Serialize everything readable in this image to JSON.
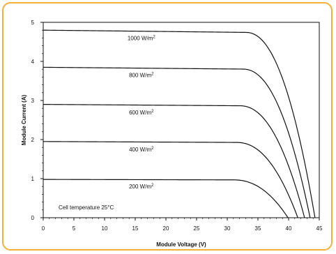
{
  "chart_data": {
    "type": "line",
    "title": "",
    "xlabel": "Module Voltage (V)",
    "ylabel": "Module Current (A)",
    "xlim": [
      0,
      45
    ],
    "ylim": [
      0,
      5
    ],
    "xticks": [
      0,
      5,
      10,
      15,
      20,
      25,
      30,
      35,
      40,
      45
    ],
    "yticks": [
      0,
      1,
      2,
      3,
      4,
      5
    ],
    "grid": false,
    "annotation": "Cell temperature 25°C",
    "series": [
      {
        "name": "1000 W/m²",
        "unit_base": "1000 W/m",
        "unit_sup": "2",
        "isc": 4.8,
        "voc": 44.3,
        "vknee": 33.0
      },
      {
        "name": "800 W/m²",
        "unit_base": "800 W/m",
        "unit_sup": "2",
        "isc": 3.85,
        "voc": 43.5,
        "vknee": 32.5
      },
      {
        "name": "600 W/m²",
        "unit_base": "600 W/m",
        "unit_sup": "2",
        "isc": 2.9,
        "voc": 42.6,
        "vknee": 32.0
      },
      {
        "name": "400 W/m²",
        "unit_base": "400 W/m",
        "unit_sup": "2",
        "isc": 1.95,
        "voc": 41.5,
        "vknee": 31.5
      },
      {
        "name": "200 W/m²",
        "unit_base": "200 W/m",
        "unit_sup": "2",
        "isc": 0.98,
        "voc": 39.9,
        "vknee": 31.0
      }
    ],
    "label_positions_v": [
      4.6,
      3.65,
      2.7,
      1.75,
      0.8
    ]
  }
}
